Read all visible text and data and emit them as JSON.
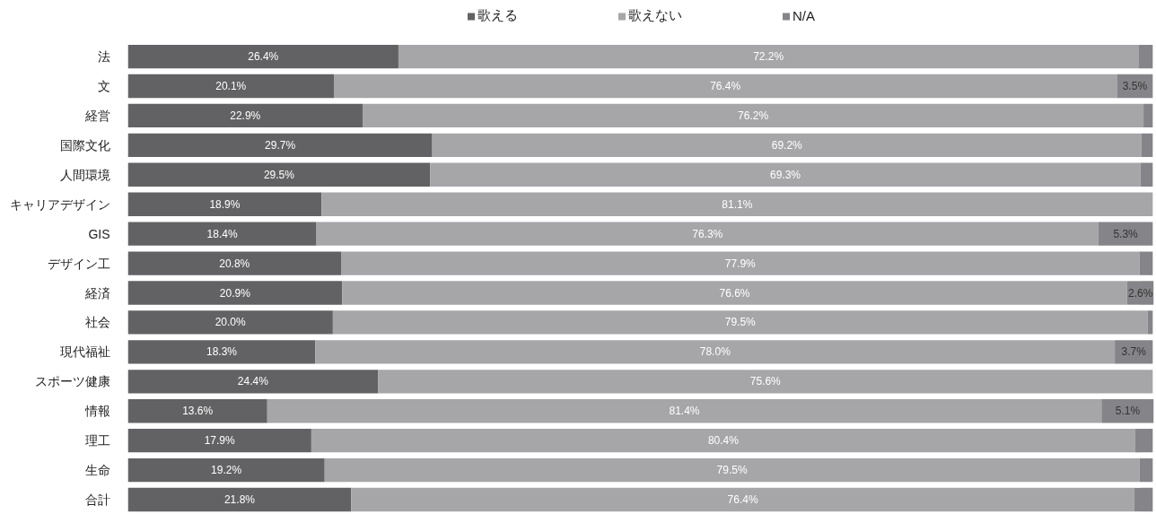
{
  "chart_data": {
    "type": "bar",
    "orientation": "horizontal",
    "stacked": true,
    "categories": [
      "法",
      "文",
      "経営",
      "国際文化",
      "人間環境",
      "キャリアデザイン",
      "GIS",
      "デザイン工",
      "経済",
      "社会",
      "現代福祉",
      "スポーツ健康",
      "情報",
      "理工",
      "生命",
      "合計"
    ],
    "series": [
      {
        "name": "歌える",
        "color": "#626264",
        "values": [
          26.4,
          20.1,
          22.9,
          29.7,
          29.5,
          18.9,
          18.4,
          20.8,
          20.9,
          20.0,
          18.3,
          24.4,
          13.6,
          17.9,
          19.2,
          21.8
        ],
        "value_labels": [
          "26.4%",
          "20.1%",
          "22.9%",
          "29.7%",
          "29.5%",
          "18.9%",
          "18.4%",
          "20.8%",
          "20.9%",
          "20.0%",
          "18.3%",
          "24.4%",
          "13.6%",
          "17.9%",
          "19.2%",
          "21.8%"
        ]
      },
      {
        "name": "歌えない",
        "color": "#a6a6a9",
        "values": [
          72.2,
          76.4,
          76.2,
          69.2,
          69.3,
          81.1,
          76.3,
          77.9,
          76.6,
          79.5,
          78.0,
          75.6,
          81.4,
          80.4,
          79.5,
          76.4
        ],
        "value_labels": [
          "72.2%",
          "76.4%",
          "76.2%",
          "69.2%",
          "69.3%",
          "81.1%",
          "76.3%",
          "77.9%",
          "76.6%",
          "79.5%",
          "78.0%",
          "75.6%",
          "81.4%",
          "80.4%",
          "79.5%",
          "76.4%"
        ]
      },
      {
        "name": "N/A",
        "color": "#858589",
        "values": [
          1.4,
          3.5,
          0.9,
          1.1,
          1.2,
          0,
          5.3,
          1.3,
          2.6,
          0.5,
          3.7,
          0,
          5.1,
          1.7,
          1.3,
          1.8
        ],
        "value_labels": [
          null,
          "3.5%",
          null,
          null,
          null,
          null,
          "5.3%",
          null,
          "2.6%",
          null,
          "3.7%",
          null,
          "5.1%",
          null,
          null,
          null
        ]
      }
    ],
    "xlim": [
      0,
      100.1
    ],
    "tick_labels": "y",
    "legend": "top"
  }
}
